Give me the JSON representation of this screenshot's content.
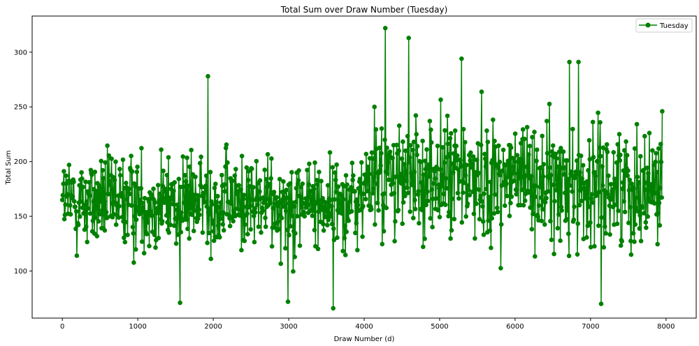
{
  "chart_data": {
    "type": "line",
    "title": "Total Sum over Draw Number (Tuesday)",
    "xlabel": "Draw Number (d)",
    "ylabel": "Total Sum",
    "xlim": [
      -400,
      8400
    ],
    "ylim": [
      57,
      333
    ],
    "xticks": [
      0,
      1000,
      2000,
      3000,
      4000,
      5000,
      6000,
      7000,
      8000
    ],
    "yticks": [
      100,
      150,
      200,
      250,
      300
    ],
    "grid": false,
    "legend": {
      "position": "top-right",
      "entries": [
        "Tuesday"
      ]
    },
    "series": [
      {
        "name": "Tuesday",
        "color": "#008000",
        "marker": "circle",
        "notable_points": [
          {
            "x": 1560,
            "y": 71
          },
          {
            "x": 1930,
            "y": 278
          },
          {
            "x": 2990,
            "y": 72
          },
          {
            "x": 3590,
            "y": 66
          },
          {
            "x": 4280,
            "y": 322
          },
          {
            "x": 4590,
            "y": 313
          },
          {
            "x": 5290,
            "y": 294
          },
          {
            "x": 6720,
            "y": 291
          },
          {
            "x": 6840,
            "y": 291
          },
          {
            "x": 7140,
            "y": 70
          },
          {
            "x": 7950,
            "y": 246
          }
        ]
      }
    ]
  }
}
